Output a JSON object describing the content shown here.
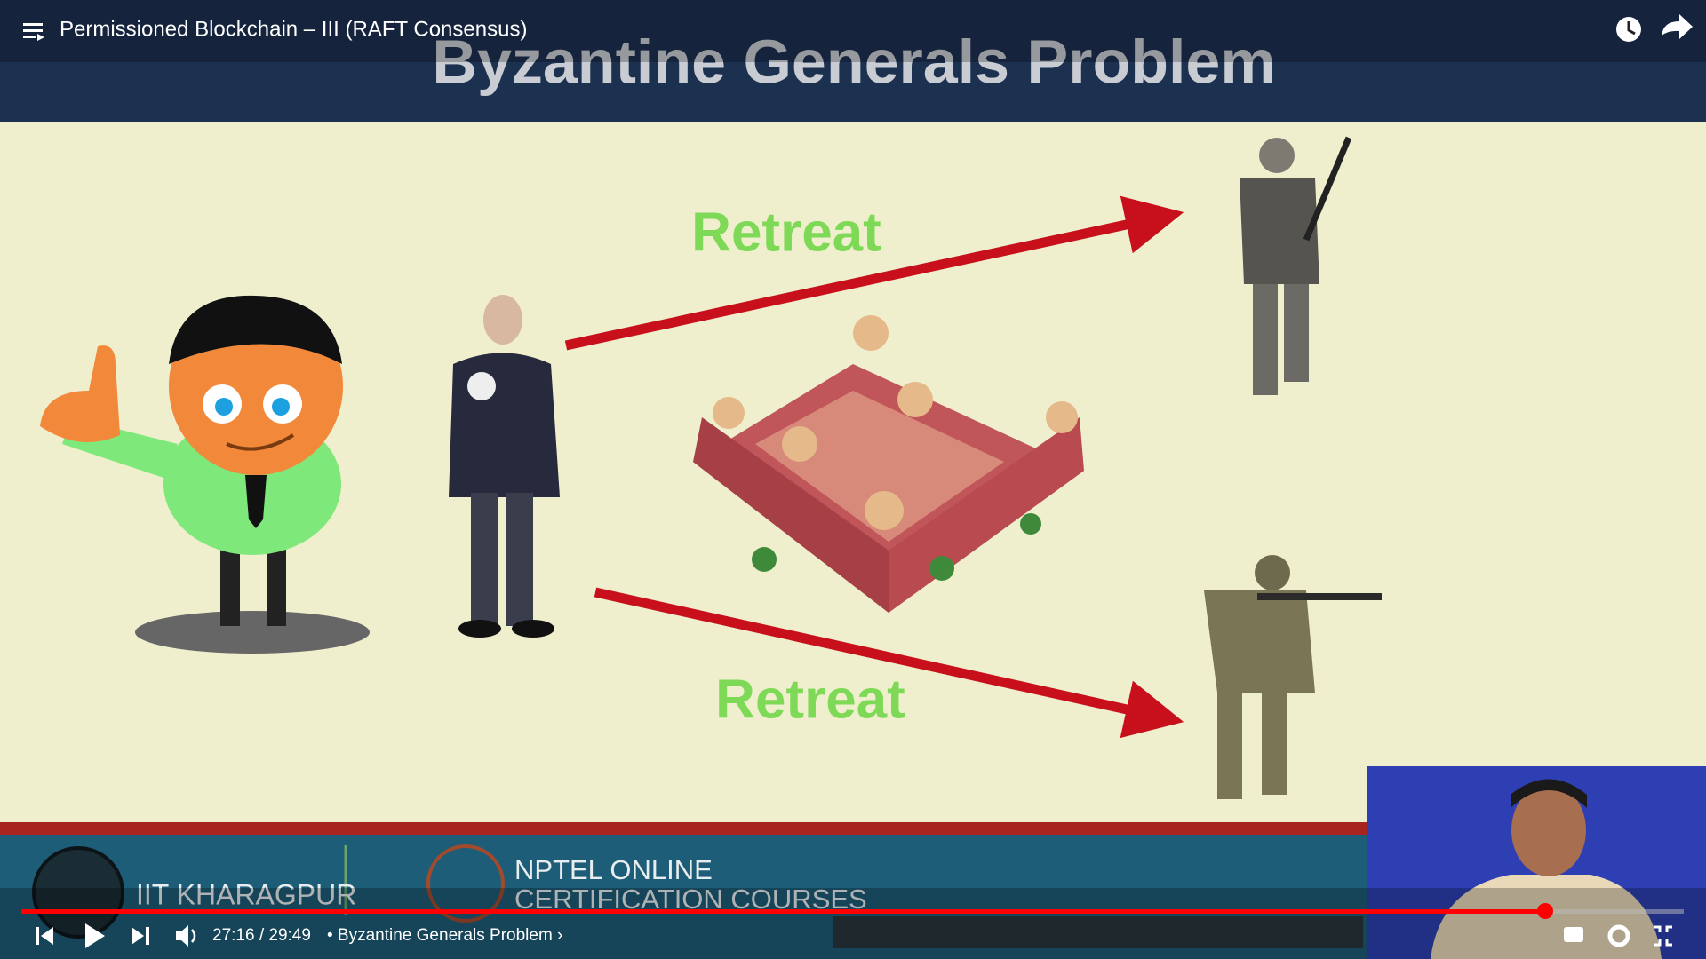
{
  "player": {
    "video_title": "Permissioned Blockchain – III (RAFT Consensus)",
    "time": "27:16 / 29:49",
    "chapter": "• Byzantine Generals Problem ›"
  },
  "slide": {
    "title": "Byzantine Generals Problem",
    "message_top": "Retreat",
    "message_bottom": "Retreat"
  },
  "footer": {
    "institute": "IIT KHARAGPUR",
    "nptel_line1": "NPTEL ONLINE",
    "nptel_line2": "CERTIFICATION COURSES"
  }
}
